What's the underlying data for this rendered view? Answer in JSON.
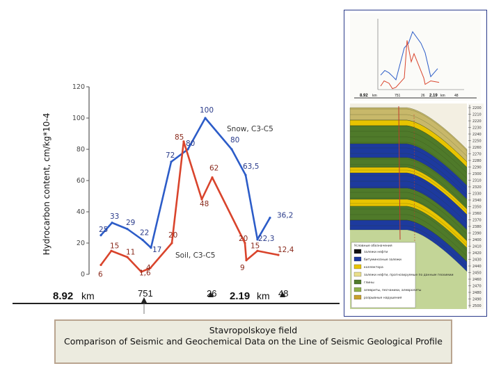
{
  "chart_data": [
    {
      "type": "line",
      "ylabel": "Hydrocarbon content, cm/kg*10-4",
      "ylim": [
        0,
        120
      ],
      "yticks": [
        "0",
        "20",
        "40",
        "60",
        "80",
        "100",
        "120"
      ],
      "series": [
        {
          "name": "Snow, C3-C5",
          "color": "#2c5cc8",
          "points": [
            {
              "x": 0,
              "y": 25,
              "label": "25"
            },
            {
              "x": 1,
              "y": 33,
              "label": "33"
            },
            {
              "x": 2,
              "y": 29,
              "label": "29"
            },
            {
              "x": 3,
              "y": 22,
              "label": "22"
            },
            {
              "x": 4,
              "y": 17,
              "label": "17"
            },
            {
              "x": 5,
              "y": 72,
              "label": "72"
            },
            {
              "x": 6,
              "y": 80,
              "label": "80"
            },
            {
              "x": 7,
              "y": 100,
              "label": "100"
            },
            {
              "x": 8,
              "y": 80,
              "label": "80"
            },
            {
              "x": 9,
              "y": 63.5,
              "label": "63,5"
            },
            {
              "x": 10,
              "y": 22.3,
              "label": "22,3"
            },
            {
              "x": 11,
              "y": 36.2,
              "label": "36,2"
            }
          ]
        },
        {
          "name": "Soil, C3-C5",
          "color": "#d9442c",
          "points": [
            {
              "x": 0,
              "y": 6,
              "label": "6"
            },
            {
              "x": 1,
              "y": 15,
              "label": "15"
            },
            {
              "x": 2,
              "y": 11,
              "label": "11"
            },
            {
              "x": 3,
              "y": 1.6,
              "label": "1,6"
            },
            {
              "x": 4,
              "y": 4,
              "label": "4"
            },
            {
              "x": 5,
              "y": 20,
              "label": "20"
            },
            {
              "x": 6,
              "y": 85,
              "label": "85"
            },
            {
              "x": 7,
              "y": 48,
              "label": "48"
            },
            {
              "x": 8,
              "y": 62,
              "label": "62"
            },
            {
              "x": 9,
              "y": 20,
              "label": "20"
            },
            {
              "x": 10,
              "y": 9,
              "label": "9"
            },
            {
              "x": 11,
              "y": 15,
              "label": "15"
            },
            {
              "x": 12,
              "y": 12.4,
              "label": "12,4"
            }
          ]
        }
      ],
      "series_labels": {
        "snow": "Snow, C3-C5",
        "soil": "Soil, C3-C5"
      },
      "axis_markers": {
        "left_value": "8.92",
        "left_unit": "km",
        "point_a": "751",
        "point_b": "26",
        "mid_value": "2.19",
        "mid_unit": "km",
        "point_c": "48"
      }
    },
    {
      "type": "line",
      "series": [
        {
          "name": "Snow, C3-C5",
          "color": "#2c5cc8",
          "values": [
            25,
            33,
            29,
            22,
            17,
            72,
            80,
            100,
            80,
            63.5,
            22.3,
            36.2
          ]
        },
        {
          "name": "Soil, C3-C5",
          "color": "#d9442c",
          "values": [
            6,
            15,
            11,
            1.6,
            4,
            20,
            85,
            48,
            62,
            20,
            9,
            15,
            12.4
          ]
        }
      ],
      "markers": {
        "left": "8.92",
        "left_unit": "km",
        "a": "751",
        "b": "26",
        "mid": "2.19",
        "mid_unit": "km",
        "c": "48"
      }
    }
  ],
  "profile": {
    "depth_labels": [
      "2200",
      "2210",
      "2220",
      "2230",
      "2240",
      "2250",
      "2260",
      "2270",
      "2280",
      "2290",
      "2300",
      "2310",
      "2320",
      "2330",
      "2340",
      "2350",
      "2360",
      "2370",
      "2380",
      "2390",
      "2400",
      "2410",
      "2420",
      "2430",
      "2440",
      "2450",
      "2460",
      "2470",
      "2480",
      "2490",
      "2500"
    ],
    "legend_title": "Условные обозначения",
    "legend_items": [
      {
        "label": "залежи нефти",
        "color": "#111111"
      },
      {
        "label": "битуминозные залежи",
        "color": "#1d3a9e"
      },
      {
        "label": "коллектора",
        "color": "#e8c400"
      },
      {
        "label": "залежи нефти, прогнозируемые по данным геохимии",
        "color": "#e9de8a"
      },
      {
        "label": "глины",
        "color": "#4f7a2a"
      },
      {
        "label": "алевриты, песчаники, алевролиты",
        "color": "#8fb04a"
      },
      {
        "label": "разрывные нарушения",
        "color": "#c8a12c"
      }
    ],
    "colors": {
      "sand": "#c8b86a",
      "oil": "#1d3a9e",
      "clay": "#4f7a2a",
      "yellow": "#e8c400",
      "fault": "#c0392b"
    }
  },
  "caption": {
    "line1": "Stavropolskoye field",
    "line2": "Comparison of Seismic and Geochemical Data on the Line of Seismic Geological Profile"
  }
}
